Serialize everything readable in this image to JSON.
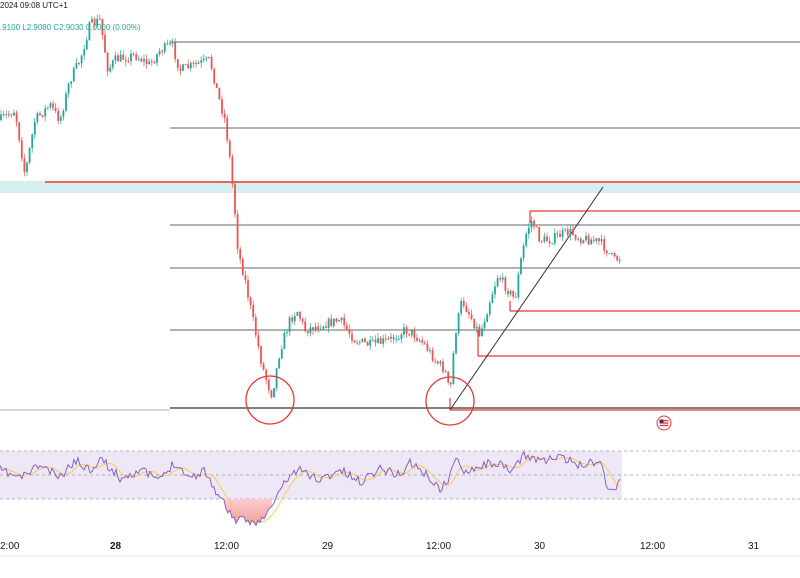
{
  "header": {
    "date_fragment": "2024 09:08 UTC+1",
    "ohlc_text": ".9100  L2.9080  C2.9030  0.0000 (0.00%)"
  },
  "time_axis": {
    "labels": [
      "2:00",
      "28",
      "12:00",
      "29",
      "12:00",
      "30",
      "12:00",
      "31"
    ]
  },
  "colors": {
    "up": "#26a69a",
    "down": "#ef5350",
    "level_line": "#333333",
    "red_level": "#e53935",
    "trendline": "#333333",
    "rsi_line": "#7e57c2",
    "rsi_ma": "#f9c74f",
    "rsi_band_fill": "#ede7f6",
    "zone_fill": "#d6eef0",
    "circle": "#e53935"
  },
  "icons": {
    "flag": "us-flag-icon"
  },
  "chart_data": {
    "type": "candlestick",
    "title": "",
    "xlabel": "",
    "ylabel": "",
    "x_ticks": [
      "2:00",
      "28",
      "12:00",
      "29",
      "12:00",
      "30",
      "12:00",
      "31"
    ],
    "last_close": 2.903,
    "visible_ohlc": {
      "low": 2.908,
      "close": 2.903,
      "change": 0.0,
      "change_pct": "0.00%"
    },
    "horizontal_levels": 6,
    "red_levels": 5,
    "circled_lows": 2,
    "indicator": "RSI",
    "grid": false,
    "legend": "none"
  }
}
